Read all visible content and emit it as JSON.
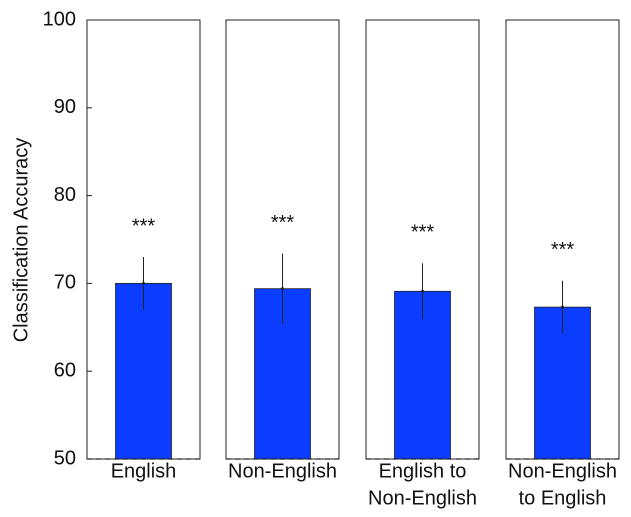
{
  "chart_data": {
    "type": "bar",
    "y_label": "Classification Accuracy",
    "categories": [
      [
        "English"
      ],
      [
        "Non-English"
      ],
      [
        "English to",
        "Non-English"
      ],
      [
        "Non-English",
        "to English"
      ]
    ],
    "values": [
      70.0,
      69.4,
      69.1,
      67.3
    ],
    "errors": [
      3.0,
      4.0,
      3.2,
      3.0
    ],
    "annotations": [
      "***",
      "***",
      "***",
      "***"
    ],
    "color": "#0a3dff",
    "ylim": [
      50,
      100
    ],
    "yticks": [
      50,
      60,
      70,
      80,
      90,
      100
    ],
    "chance_line": 50
  }
}
